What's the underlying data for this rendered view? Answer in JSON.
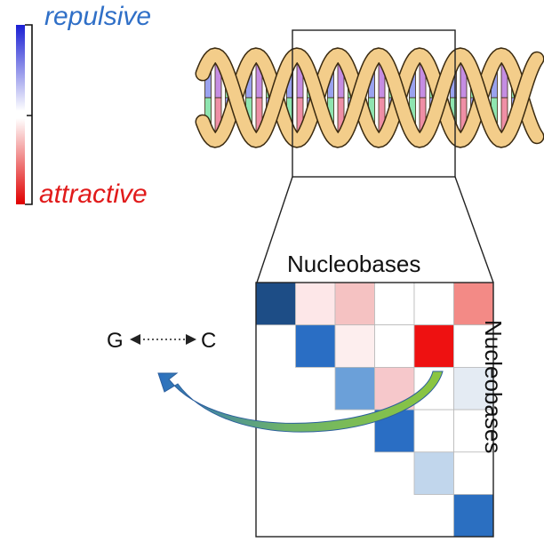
{
  "colorbar": {
    "top_label": "repulsive",
    "bottom_label": "attractive",
    "repulsive_color": "#1f2fd1",
    "attractive_color": "#e00000",
    "neutral_color": "#ffffff"
  },
  "matrix": {
    "top_title": "Nucleobases",
    "side_title": "Nucleobases",
    "cells": [
      [
        "#1d4d86",
        "#fde7e8",
        "#f5c2c2",
        "#ffffff",
        "#ffffff",
        "#f38a86"
      ],
      [
        null,
        "#2a6ec4",
        "#fdeeee",
        "#ffffff",
        "#ee1111",
        "#ffffff"
      ],
      [
        null,
        null,
        "#6ba0d9",
        "#f6c8cb",
        "#ffffff",
        "#e4ebf3"
      ],
      [
        null,
        null,
        null,
        "#2a6ec4",
        "#ffffff",
        "#ffffff"
      ],
      [
        null,
        null,
        null,
        null,
        "#c1d6ec",
        "#ffffff"
      ],
      [
        null,
        null,
        null,
        null,
        null,
        "#2b6fc1"
      ]
    ]
  },
  "pair": {
    "left": "G",
    "right": "C"
  },
  "dna": {
    "backbone_color": "#f3cd8a",
    "backbone_stroke": "#3a2a10",
    "base_colors": [
      "#9aa2ef",
      "#c58de3",
      "#8fe5b0",
      "#ef8fa6"
    ]
  },
  "arrow": {
    "color_start": "#2b6fc1",
    "color_end": "#8cc63f"
  }
}
